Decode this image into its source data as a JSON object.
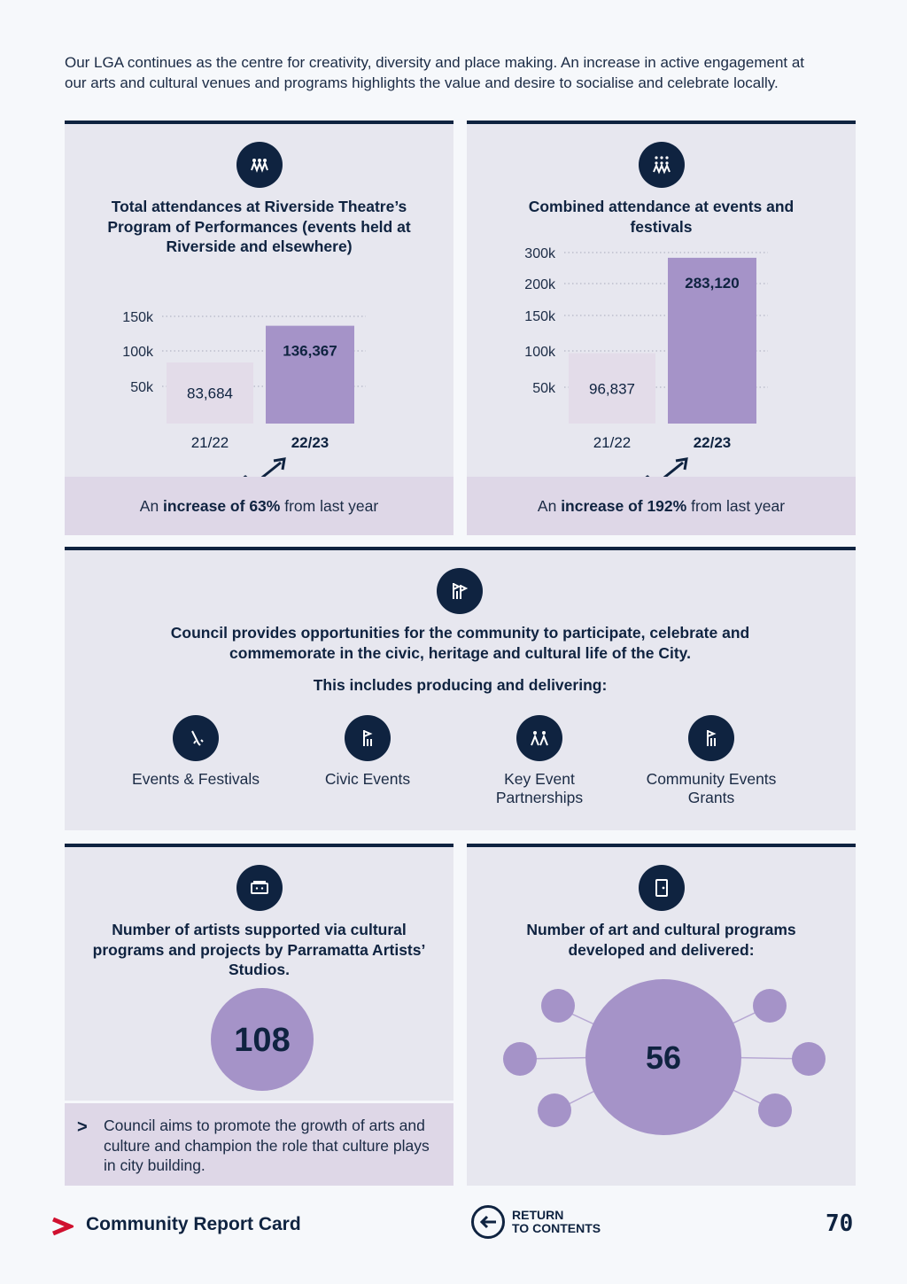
{
  "intro": "Our LGA continues as the centre for creativity, diversity and place making. An increase in active engagement at our arts and cultural venues and programs highlights the value and desire to socialise and celebrate locally.",
  "theatre": {
    "title": "Total attendances at Riverside Theatre’s Program of Performances (events held at Riverside and elsewhere)",
    "band_pre": "An ",
    "band_bold": "increase of 63%",
    "band_post": " from last year"
  },
  "events": {
    "title": "Combined attendance at events and festivals",
    "band_pre": "An ",
    "band_bold": "increase of 192%",
    "band_post": " from last year"
  },
  "council": {
    "title": "Council provides opportunities for the community to participate, celebrate and commemorate in the civic, heritage and cultural life of the City.",
    "subtitle": "This includes producing and delivering:",
    "items": [
      {
        "label": "Events & Festivals",
        "icon": "torch-icon"
      },
      {
        "label": "Civic Events",
        "icon": "flag-icon"
      },
      {
        "label": "Key Event Partnerships",
        "icon": "people-icon"
      },
      {
        "label": "Community Events Grants",
        "icon": "flag-grant-icon"
      }
    ]
  },
  "artists": {
    "title": "Number of artists supported via cultural programs and projects by Parramatta Artists’ Studios.",
    "value": "108",
    "note": "Council aims to promote the growth of arts and culture and champion the role that culture plays in city building."
  },
  "programs": {
    "title": "Number of art and cultural programs developed and delivered:",
    "value": "56"
  },
  "footer": {
    "title": "Community Report Card",
    "return_line1": "RETURN",
    "return_line2": "TO CONTENTS",
    "page": "70"
  },
  "colors": {
    "navy": "#0f2340",
    "bar_light": "#e3dce9",
    "bar_dark": "#a593c8",
    "panel": "#e7e7ef",
    "band": "#ded7e7",
    "accent_red": "#d0102f"
  },
  "chart_data": [
    {
      "type": "bar",
      "categories": [
        "21/22",
        "22/23"
      ],
      "values": [
        83684,
        136367
      ],
      "value_labels": [
        "83,684",
        "136,367"
      ],
      "ytick_labels": [
        "50k",
        "100k",
        "150k"
      ],
      "yticks": [
        50000,
        100000,
        150000
      ],
      "ylim": [
        0,
        150000
      ]
    },
    {
      "type": "bar",
      "categories": [
        "21/22",
        "22/23"
      ],
      "values": [
        96837,
        283120
      ],
      "value_labels": [
        "96,837",
        "283,120"
      ],
      "ytick_labels": [
        "50k",
        "100k",
        "150k",
        "200k",
        "300k"
      ],
      "yticks": [
        50000,
        100000,
        150000,
        200000,
        300000
      ],
      "ylim": [
        0,
        300000
      ]
    }
  ]
}
